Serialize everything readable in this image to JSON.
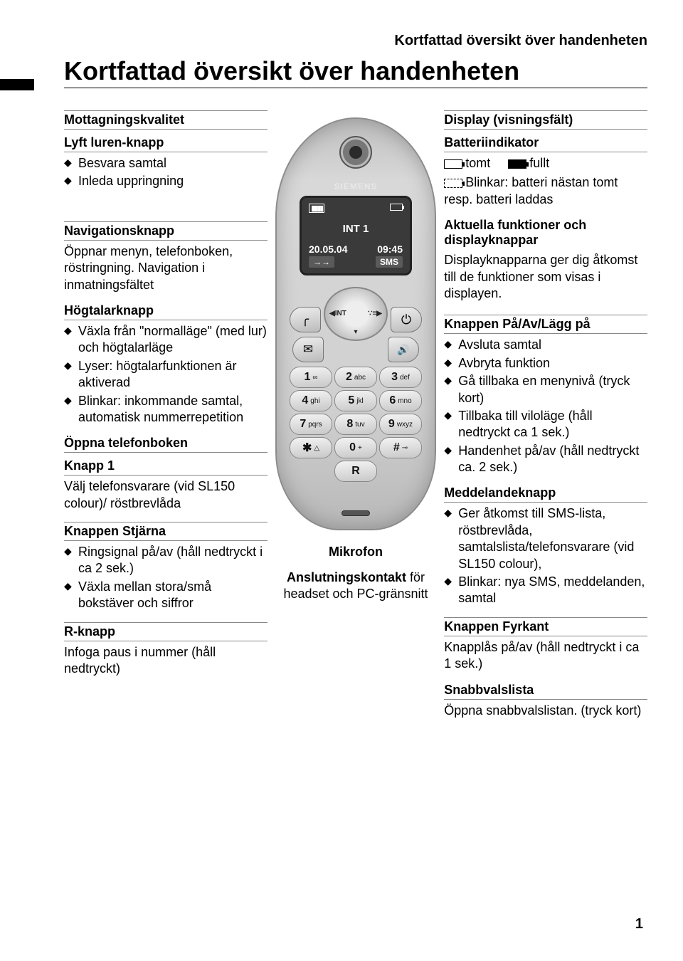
{
  "running_head": "Kortfattad översikt över handenheten",
  "main_title": "Kortfattad översikt över handenheten",
  "page_num": "1",
  "left": {
    "s1_title": "Mottagningskvalitet",
    "s2_title": "Lyft luren-knapp",
    "s2_items": [
      "Besvara samtal",
      "Inleda uppringning"
    ],
    "s3_title": "Navigationsknapp",
    "s3_body": "Öppnar menyn, telefonboken, röstringning. Navigation i inmatningsfältet",
    "s4_title": "Högtalarknapp",
    "s4_items": [
      "Växla från \"normalläge\" (med lur) och högtalarläge",
      "Lyser: högtalarfunktionen är aktiverad",
      "Blinkar: inkommande samtal, automatisk nummerrepetition"
    ],
    "s5_title": "Öppna telefonboken",
    "s6_title": "Knapp 1",
    "s6_body": "Välj telefonsvarare (vid SL150 colour)/ röstbrevlåda",
    "s7_title": "Knappen Stjärna",
    "s7_items": [
      "Ringsignal på/av (håll nedtryckt i ca 2 sek.)",
      "Växla mellan stora/små bokstäver och siffror"
    ],
    "s8_title": "R-knapp",
    "s8_body": "Infoga paus i nummer (håll nedtryckt)"
  },
  "mid": {
    "brand": "SIEMENS",
    "int": "INT 1",
    "date": "20.05.04",
    "time": "09:45",
    "sk_left": "→→",
    "sk_right": "SMS",
    "nav_left": "◀INT",
    "nav_right": "∵≡▶",
    "nav_down": "▾",
    "keys": [
      {
        "d": "1",
        "s": "∞"
      },
      {
        "d": "2",
        "s": "abc"
      },
      {
        "d": "3",
        "s": "def"
      },
      {
        "d": "4",
        "s": "ghi"
      },
      {
        "d": "5",
        "s": "jkl"
      },
      {
        "d": "6",
        "s": "mno"
      },
      {
        "d": "7",
        "s": "pqrs"
      },
      {
        "d": "8",
        "s": "tuv"
      },
      {
        "d": "9",
        "s": "wxyz"
      },
      {
        "d": "✱",
        "s": "△"
      },
      {
        "d": "0",
        "s": "+"
      },
      {
        "d": "#",
        "s": "⊸"
      },
      {
        "d": "",
        "s": ""
      },
      {
        "d": "R",
        "s": ""
      },
      {
        "d": "",
        "s": ""
      }
    ],
    "mic_label": "Mikrofon",
    "conn_label_bold": "Anslutningskontakt",
    "conn_label_rest": " för headset och PC-gränsnitt"
  },
  "right": {
    "s1_title": "Display (visningsfält)",
    "s2_title": "Batteriindikator",
    "s2_empty": "tomt",
    "s2_full": "fullt",
    "s2_blink": "Blinkar: batteri nästan tomt resp. batteri laddas",
    "s3_title": "Aktuella funktioner och displayknappar",
    "s3_body": "Displayknapparna ger dig åtkomst till de funktioner som visas i displayen.",
    "s4_title": "Knappen På/Av/Lägg på",
    "s4_items": [
      "Avsluta samtal",
      "Avbryta funktion",
      "Gå tillbaka en menynivå (tryck kort)",
      "Tillbaka till viloläge (håll nedtryckt ca 1 sek.)",
      "Handenhet på/av (håll nedtryckt ca. 2 sek.)"
    ],
    "s5_title": "Meddelandeknapp",
    "s5_items": [
      "Ger åtkomst till SMS-lista, röstbrevlåda, samtalslista/telefonsvarare (vid SL150 colour),",
      "Blinkar: nya SMS, meddelanden, samtal"
    ],
    "s6_title": "Knappen Fyrkant",
    "s6_body": "Knapplås på/av (håll nedtryckt i ca 1 sek.)",
    "s7_title": "Snabbvalslista",
    "s7_body": "Öppna snabbvalslistan. (tryck kort)"
  }
}
